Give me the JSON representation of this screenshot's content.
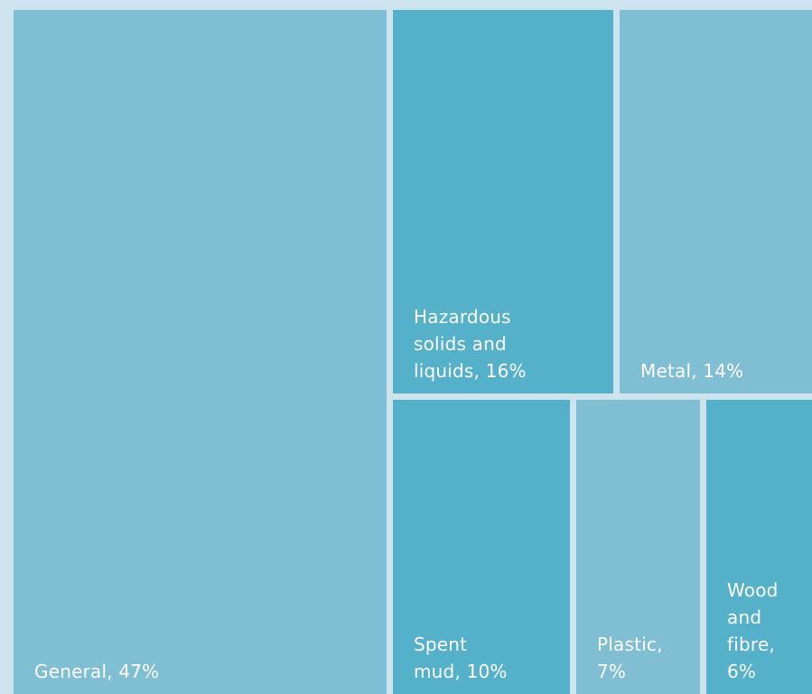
{
  "chart_data": {
    "type": "treemap",
    "title": "",
    "unit": "%",
    "items": [
      {
        "name": "General",
        "label": "General, 47%",
        "value": 47,
        "color": "#80bed4"
      },
      {
        "name": "Hazardous solids and liquids",
        "label": "Hazardous\nsolids and\nliquids, 16%",
        "value": 16,
        "color": "#55b0ca"
      },
      {
        "name": "Metal",
        "label": "Metal, 14%",
        "value": 14,
        "color": "#80bed4"
      },
      {
        "name": "Spent mud",
        "label": "Spent\nmud, 10%",
        "value": 10,
        "color": "#55b0ca"
      },
      {
        "name": "Plastic",
        "label": "Plastic,\n7%",
        "value": 7,
        "color": "#80bed4"
      },
      {
        "name": "Wood and fibre",
        "label": "Wood\nand\nfibre,\n6%",
        "value": 6,
        "color": "#55b0ca"
      }
    ],
    "colors": {
      "background": "#cde3ed",
      "light": "#80bed4",
      "dark": "#55b0ca",
      "text": "#ffffff"
    }
  }
}
